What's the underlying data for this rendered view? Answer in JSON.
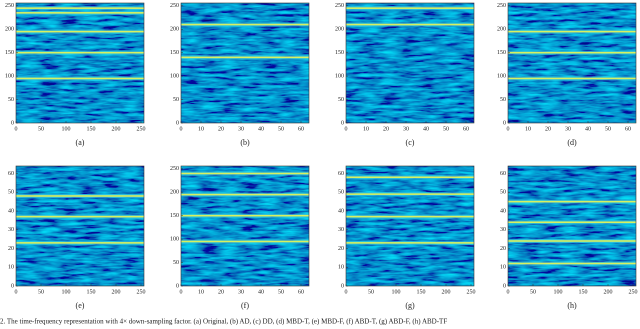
{
  "figure": {
    "caption": "2.   The time-frequency representation with 4× down-sampling factor. (a) Original, (b) AD, (c) DD, (d) MBD-T, (e) MBD-F, (f) ABD-T, (g) ABD-F, (h) ABD-TF",
    "panels": [
      {
        "label": "(a)",
        "xlim": [
          0,
          256
        ],
        "ylim": [
          0,
          256
        ],
        "xticks": [
          0,
          50,
          100,
          150,
          200,
          250
        ],
        "yticks": [
          0,
          50,
          100,
          150,
          200,
          250
        ],
        "bright_rows": [
          245,
          235,
          195,
          150,
          95
        ]
      },
      {
        "label": "(b)",
        "xlim": [
          0,
          64
        ],
        "ylim": [
          0,
          256
        ],
        "xticks": [
          0,
          10,
          20,
          30,
          40,
          50,
          60
        ],
        "yticks": [
          0,
          50,
          100,
          150,
          200,
          250
        ],
        "bright_rows": [
          210,
          140
        ]
      },
      {
        "label": "(c)",
        "xlim": [
          0,
          64
        ],
        "ylim": [
          0,
          256
        ],
        "xticks": [
          0,
          10,
          20,
          30,
          40,
          50,
          60
        ],
        "yticks": [
          0,
          50,
          100,
          150,
          200,
          250
        ],
        "bright_rows": [
          245,
          210
        ]
      },
      {
        "label": "(d)",
        "xlim": [
          0,
          64
        ],
        "ylim": [
          0,
          256
        ],
        "xticks": [
          0,
          10,
          20,
          30,
          40,
          50,
          60
        ],
        "yticks": [
          0,
          50,
          100,
          150,
          200,
          250
        ],
        "bright_rows": [
          195,
          150,
          95
        ]
      },
      {
        "label": "(e)",
        "xlim": [
          0,
          256
        ],
        "ylim": [
          0,
          64
        ],
        "xticks": [
          0,
          50,
          100,
          150,
          200,
          250
        ],
        "yticks": [
          0,
          10,
          20,
          30,
          40,
          50,
          60
        ],
        "bright_rows": [
          48,
          37,
          23
        ]
      },
      {
        "label": "(f)",
        "xlim": [
          0,
          64
        ],
        "ylim": [
          0,
          256
        ],
        "xticks": [
          0,
          10,
          20,
          30,
          40,
          50,
          60
        ],
        "yticks": [
          0,
          50,
          100,
          150,
          200,
          250
        ],
        "bright_rows": [
          240,
          195,
          150,
          95
        ]
      },
      {
        "label": "(g)",
        "xlim": [
          0,
          256
        ],
        "ylim": [
          0,
          64
        ],
        "xticks": [
          0,
          50,
          100,
          150,
          200,
          250
        ],
        "yticks": [
          0,
          10,
          20,
          30,
          40,
          50,
          60
        ],
        "bright_rows": [
          58,
          49,
          37,
          23
        ]
      },
      {
        "label": "(h)",
        "xlim": [
          0,
          256
        ],
        "ylim": [
          0,
          64
        ],
        "xticks": [
          0,
          50,
          100,
          150,
          200,
          250
        ],
        "yticks": [
          0,
          10,
          20,
          30,
          40,
          50,
          60
        ],
        "bright_rows": [
          45,
          34,
          24,
          12
        ]
      }
    ]
  }
}
